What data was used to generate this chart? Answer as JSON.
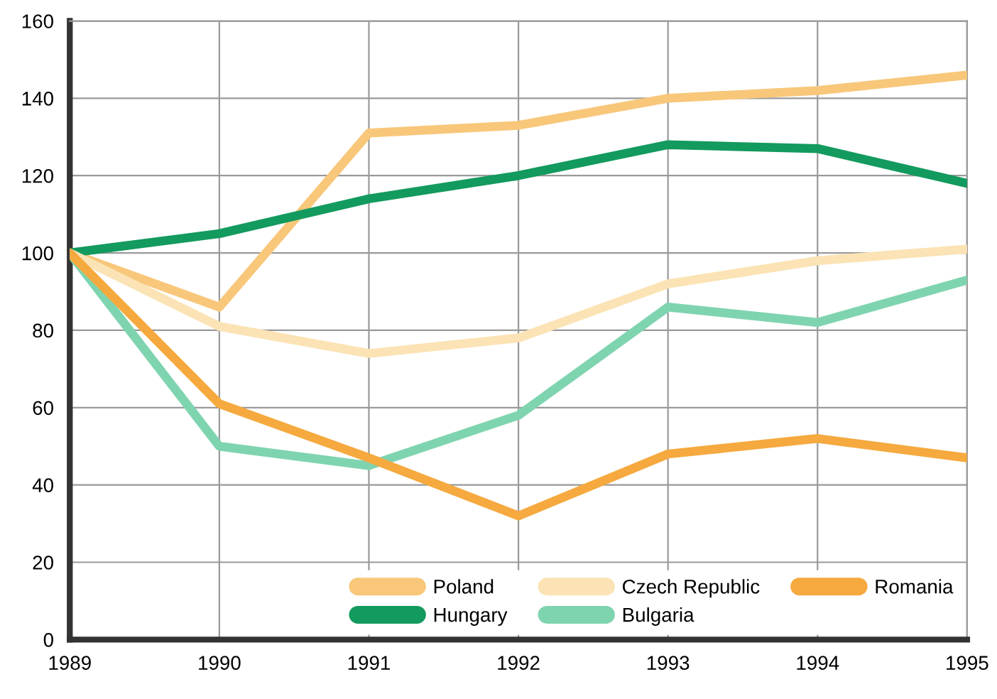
{
  "chart_data": {
    "type": "line",
    "x": [
      1989,
      1990,
      1991,
      1992,
      1993,
      1994,
      1995
    ],
    "series": [
      {
        "name": "Poland",
        "color": "#f8c77a",
        "values": [
          100,
          86,
          131,
          133,
          140,
          142,
          146
        ]
      },
      {
        "name": "Hungary",
        "color": "#139a5e",
        "values": [
          100,
          105,
          114,
          120,
          128,
          127,
          118
        ]
      },
      {
        "name": "Czech Republic",
        "color": "#fbe3b5",
        "values": [
          100,
          81,
          74,
          78,
          92,
          98,
          101
        ]
      },
      {
        "name": "Bulgaria",
        "color": "#7fd4b0",
        "values": [
          100,
          50,
          45,
          58,
          86,
          82,
          93
        ]
      },
      {
        "name": "Romania",
        "color": "#f5a93e",
        "values": [
          100,
          61,
          47,
          32,
          48,
          52,
          47
        ]
      }
    ],
    "xlim": [
      1989,
      1995
    ],
    "xticks": [
      1989,
      1990,
      1991,
      1992,
      1993,
      1994,
      1995
    ],
    "ylim": [
      0,
      160
    ],
    "yticks": [
      0,
      20,
      40,
      60,
      80,
      100,
      120,
      140,
      160
    ],
    "grid": true,
    "legend": "bottom right",
    "marker": "none",
    "line_style": "solid"
  }
}
